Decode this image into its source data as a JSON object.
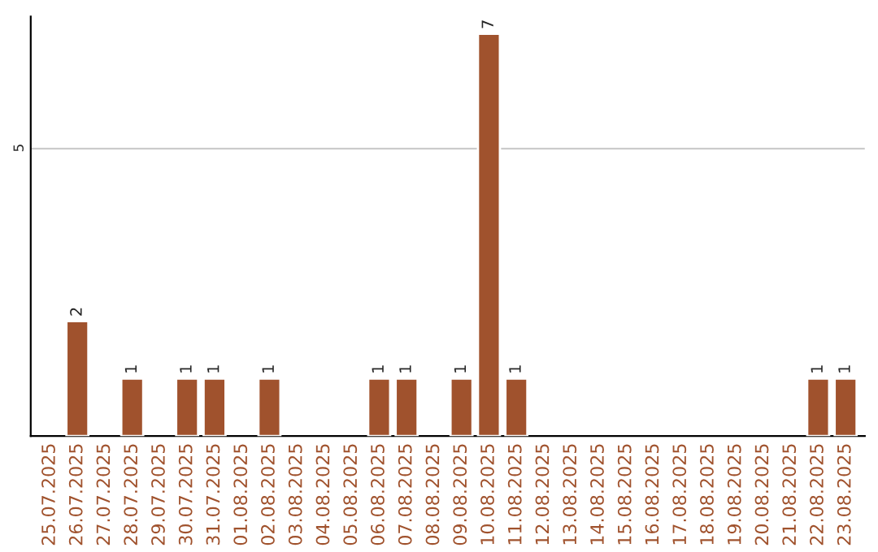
{
  "chart_data": {
    "type": "bar",
    "categories": [
      "25.07.2025",
      "26.07.2025",
      "27.07.2025",
      "28.07.2025",
      "29.07.2025",
      "30.07.2025",
      "31.07.2025",
      "01.08.2025",
      "02.08.2025",
      "03.08.2025",
      "04.08.2025",
      "05.08.2025",
      "06.08.2025",
      "07.08.2025",
      "08.08.2025",
      "09.08.2025",
      "10.08.2025",
      "11.08.2025",
      "12.08.2025",
      "13.08.2025",
      "14.08.2025",
      "15.08.2025",
      "16.08.2025",
      "17.08.2025",
      "18.08.2025",
      "19.08.2025",
      "20.08.2025",
      "21.08.2025",
      "22.08.2025",
      "23.08.2025"
    ],
    "values": [
      null,
      2,
      null,
      1,
      null,
      1,
      1,
      null,
      1,
      null,
      null,
      null,
      1,
      1,
      null,
      1,
      7,
      1,
      null,
      null,
      null,
      null,
      null,
      null,
      null,
      null,
      null,
      null,
      1,
      1
    ],
    "color": "#a0522d",
    "ylim": [
      0,
      7.3
    ],
    "yticks": [
      5
    ],
    "grid": "y",
    "data_labels": true
  }
}
